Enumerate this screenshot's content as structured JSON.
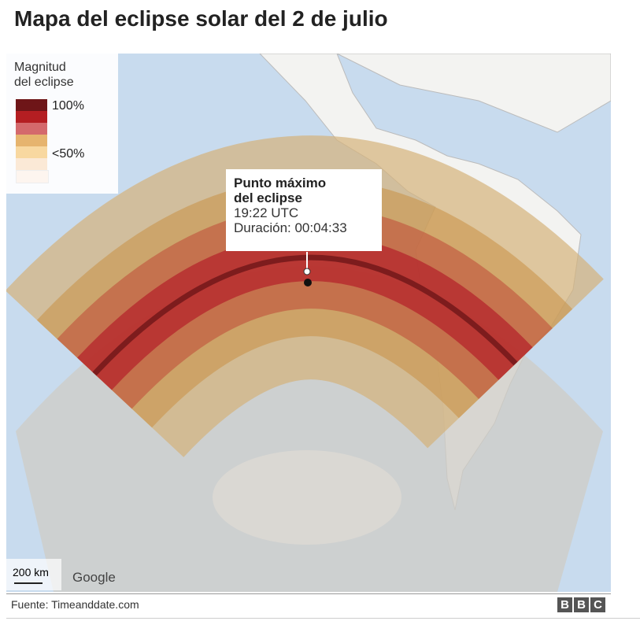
{
  "header": {
    "title": "Mapa del eclipse solar del 2 de julio"
  },
  "legend": {
    "title": [
      "Magnitud",
      "del eclipse"
    ],
    "labels": [
      "100%",
      "<50%"
    ]
  },
  "callout": {
    "title": [
      "Punto máximo",
      "del eclipse"
    ],
    "time": "19:22 UTC",
    "duration": "Duración: 00:04:33"
  },
  "map": {
    "scale": "200 km",
    "attribution": "Google"
  },
  "footer": {
    "source": "Fuente: Timeanddate.com",
    "logo": [
      "B",
      "B",
      "C"
    ]
  }
}
